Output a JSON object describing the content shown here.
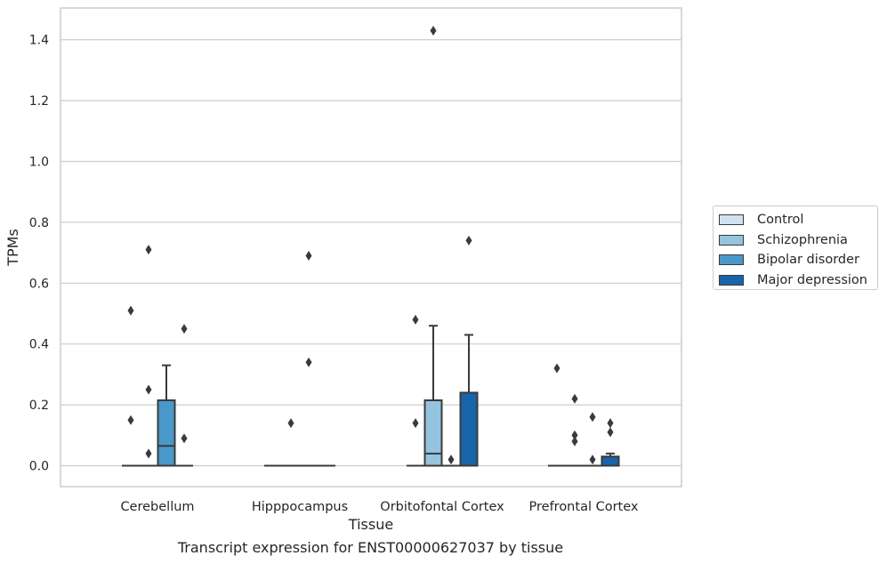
{
  "chart_data": {
    "type": "box",
    "xlabel": "Tissue",
    "ylabel": "TPMs",
    "ylim": [
      -0.07,
      1.5
    ],
    "yticks": [
      "0.0",
      "0.2",
      "0.4",
      "0.6",
      "0.8",
      "1.0",
      "1.2",
      "1.4"
    ],
    "categories": [
      "Cerebellum",
      "Hipppocampus",
      "Orbitofontal Cortex",
      "Prefrontal Cortex"
    ],
    "series": [
      {
        "name": "Control",
        "color": "#d0e1f2"
      },
      {
        "name": "Schizophrenia",
        "color": "#94c4df"
      },
      {
        "name": "Bipolar disorder",
        "color": "#4a98c9"
      },
      {
        "name": "Major depression",
        "color": "#1764ab"
      }
    ],
    "boxes": [
      {
        "category": "Cerebellum",
        "series": "Control",
        "q1": 0,
        "median": 0,
        "q3": 0,
        "whisker_low": 0,
        "whisker_high": 0,
        "outliers": [
          0.51,
          0.15
        ]
      },
      {
        "category": "Cerebellum",
        "series": "Schizophrenia",
        "q1": 0,
        "median": 0,
        "q3": 0,
        "whisker_low": 0,
        "whisker_high": 0,
        "outliers": [
          0.71,
          0.25,
          0.04
        ]
      },
      {
        "category": "Cerebellum",
        "series": "Bipolar disorder",
        "q1": 0,
        "median": 0.065,
        "q3": 0.215,
        "whisker_low": 0,
        "whisker_high": 0.33,
        "outliers": []
      },
      {
        "category": "Cerebellum",
        "series": "Major depression",
        "q1": 0,
        "median": 0,
        "q3": 0,
        "whisker_low": 0,
        "whisker_high": 0,
        "outliers": [
          0.45,
          0.09
        ]
      },
      {
        "category": "Hipppocampus",
        "series": "Control",
        "q1": 0,
        "median": 0,
        "q3": 0,
        "whisker_low": 0,
        "whisker_high": 0,
        "outliers": []
      },
      {
        "category": "Hipppocampus",
        "series": "Schizophrenia",
        "q1": 0,
        "median": 0,
        "q3": 0,
        "whisker_low": 0,
        "whisker_high": 0,
        "outliers": [
          0.14
        ]
      },
      {
        "category": "Hipppocampus",
        "series": "Bipolar disorder",
        "q1": 0,
        "median": 0,
        "q3": 0,
        "whisker_low": 0,
        "whisker_high": 0,
        "outliers": [
          0.69,
          0.34
        ]
      },
      {
        "category": "Hipppocampus",
        "series": "Major depression",
        "q1": 0,
        "median": 0,
        "q3": 0,
        "whisker_low": 0,
        "whisker_high": 0,
        "outliers": []
      },
      {
        "category": "Orbitofontal Cortex",
        "series": "Control",
        "q1": 0,
        "median": 0,
        "q3": 0,
        "whisker_low": 0,
        "whisker_high": 0,
        "outliers": [
          0.48,
          0.14
        ]
      },
      {
        "category": "Orbitofontal Cortex",
        "series": "Schizophrenia",
        "q1": 0,
        "median": 0.04,
        "q3": 0.215,
        "whisker_low": 0,
        "whisker_high": 0.46,
        "outliers": [
          1.43
        ]
      },
      {
        "category": "Orbitofontal Cortex",
        "series": "Bipolar disorder",
        "q1": 0,
        "median": 0,
        "q3": 0,
        "whisker_low": 0,
        "whisker_high": 0,
        "outliers": [
          0.02
        ]
      },
      {
        "category": "Orbitofontal Cortex",
        "series": "Major depression",
        "q1": 0,
        "median": 0,
        "q3": 0.24,
        "whisker_low": 0,
        "whisker_high": 0.43,
        "outliers": [
          0.74
        ]
      },
      {
        "category": "Prefrontal Cortex",
        "series": "Control",
        "q1": 0,
        "median": 0,
        "q3": 0,
        "whisker_low": 0,
        "whisker_high": 0,
        "outliers": [
          0.32
        ]
      },
      {
        "category": "Prefrontal Cortex",
        "series": "Schizophrenia",
        "q1": 0,
        "median": 0,
        "q3": 0,
        "whisker_low": 0,
        "whisker_high": 0,
        "outliers": [
          0.22,
          0.1,
          0.08
        ]
      },
      {
        "category": "Prefrontal Cortex",
        "series": "Bipolar disorder",
        "q1": 0,
        "median": 0,
        "q3": 0,
        "whisker_low": 0,
        "whisker_high": 0,
        "outliers": [
          0.16,
          0.02
        ]
      },
      {
        "category": "Prefrontal Cortex",
        "series": "Major depression",
        "q1": 0,
        "median": 0,
        "q3": 0.03,
        "whisker_low": 0,
        "whisker_high": 0.04,
        "outliers": [
          0.14,
          0.11
        ]
      }
    ],
    "grid": "horizontal",
    "legend_position": "right"
  },
  "caption": "Transcript expression for ENST00000627037 by tissue"
}
